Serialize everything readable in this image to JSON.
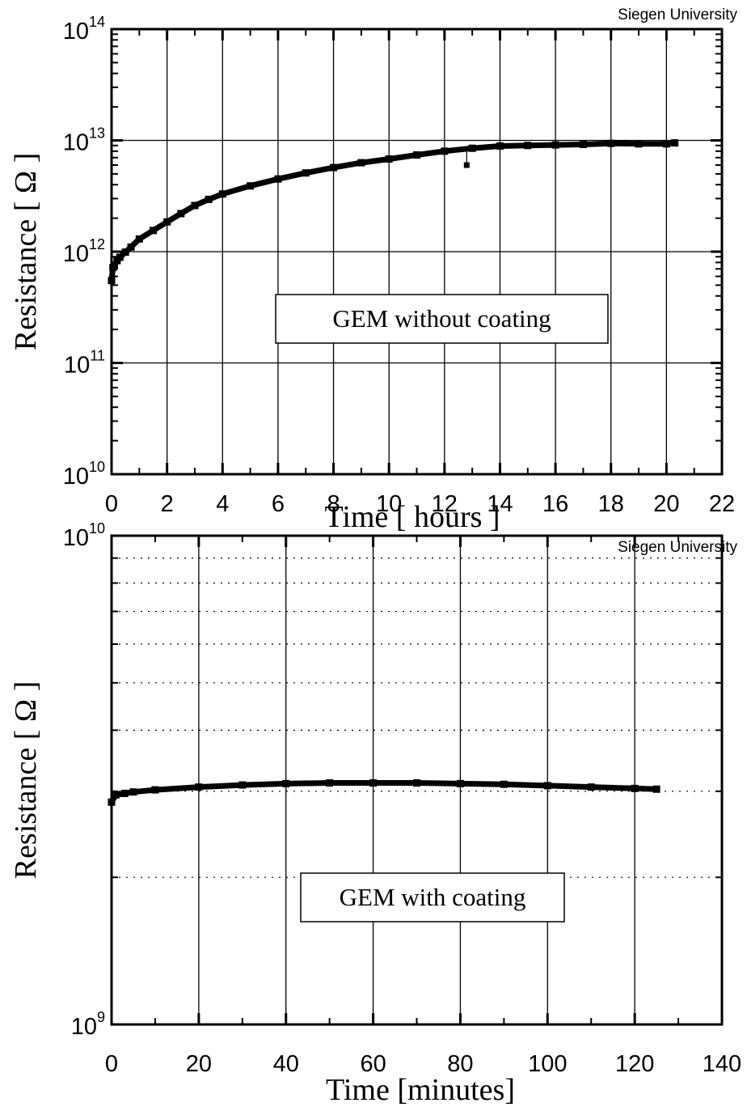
{
  "chart_data": [
    {
      "type": "scatter",
      "credit": "Siegen University",
      "xlabel": "Time [ hours ]",
      "ylabel": "Resistance [ Ω ]",
      "annotation": "GEM without coating",
      "xlim": [
        0,
        22
      ],
      "ylim": [
        10000000000.0,
        100000000000000.0
      ],
      "y_scale": "log",
      "grid": "major, solid",
      "x_ticks": [
        {
          "value": 0,
          "label": "0"
        },
        {
          "value": 2,
          "label": "2"
        },
        {
          "value": 4,
          "label": "4"
        },
        {
          "value": 6,
          "label": "6"
        },
        {
          "value": 8,
          "label": "8"
        },
        {
          "value": 10,
          "label": "10"
        },
        {
          "value": 12,
          "label": "12"
        },
        {
          "value": 14,
          "label": "14"
        },
        {
          "value": 16,
          "label": "16"
        },
        {
          "value": 18,
          "label": "18"
        },
        {
          "value": 20,
          "label": "20"
        },
        {
          "value": 22,
          "label": "22"
        }
      ],
      "y_ticks": [
        {
          "value": 10000000000.0,
          "base": "10",
          "exp": "10"
        },
        {
          "value": 100000000000.0,
          "base": "10",
          "exp": "11"
        },
        {
          "value": 1000000000000.0,
          "base": "10",
          "exp": "12"
        },
        {
          "value": 10000000000000.0,
          "base": "10",
          "exp": "13"
        },
        {
          "value": 100000000000000.0,
          "base": "10",
          "exp": "14"
        }
      ],
      "x": [
        0.0,
        0.05,
        0.1,
        0.2,
        0.3,
        0.5,
        0.7,
        1.0,
        1.5,
        2.0,
        2.5,
        3.0,
        3.5,
        4.0,
        5.0,
        6.0,
        7.0,
        8.0,
        9.0,
        10.0,
        11.0,
        12.0,
        13.0,
        14.0,
        15.0,
        16.0,
        17.0,
        18.0,
        19.0,
        20.0,
        20.3
      ],
      "y": [
        550000000000.0,
        720000000000.0,
        760000000000.0,
        830000000000.0,
        890000000000.0,
        990000000000.0,
        1100000000000.0,
        1300000000000.0,
        1550000000000.0,
        1850000000000.0,
        2200000000000.0,
        2600000000000.0,
        2950000000000.0,
        3300000000000.0,
        3900000000000.0,
        4500000000000.0,
        5100000000000.0,
        5700000000000.0,
        6300000000000.0,
        6800000000000.0,
        7400000000000.0,
        8000000000000.0,
        8500000000000.0,
        8900000000000.0,
        9000000000000.0,
        9100000000000.0,
        9200000000000.0,
        9400000000000.0,
        9300000000000.0,
        9300000000000.0,
        9500000000000.0
      ],
      "outlier": {
        "x": 12.8,
        "y": 6000000000000.0
      }
    },
    {
      "type": "scatter",
      "credit": "Siegen University",
      "xlabel": "Time [minutes]",
      "ylabel": "Resistance [ Ω ]",
      "annotation": "GEM with coating",
      "xlim": [
        0,
        140
      ],
      "ylim": [
        1000000000.0,
        10000000000.0
      ],
      "y_scale": "log",
      "grid": "vertical solid, horizontal dotted at minor decades",
      "x_ticks": [
        {
          "value": 0,
          "label": "0"
        },
        {
          "value": 20,
          "label": "20"
        },
        {
          "value": 40,
          "label": "40"
        },
        {
          "value": 60,
          "label": "60"
        },
        {
          "value": 80,
          "label": "80"
        },
        {
          "value": 100,
          "label": "100"
        },
        {
          "value": 120,
          "label": "120"
        },
        {
          "value": 140,
          "label": "140"
        }
      ],
      "y_ticks": [
        {
          "value": 1000000000.0,
          "base": "10",
          "exp": "9"
        },
        {
          "value": 10000000000.0,
          "base": "10",
          "exp": "10"
        }
      ],
      "minor_y": [
        2000000000.0,
        3000000000.0,
        4000000000.0,
        5000000000.0,
        6000000000.0,
        7000000000.0,
        8000000000.0,
        9000000000.0
      ],
      "x": [
        0,
        1,
        3,
        5,
        10,
        20,
        30,
        40,
        50,
        60,
        70,
        80,
        90,
        100,
        110,
        120,
        125
      ],
      "y": [
        2850000000.0,
        2950000000.0,
        2970000000.0,
        2990000000.0,
        3020000000.0,
        3060000000.0,
        3090000000.0,
        3110000000.0,
        3120000000.0,
        3120000000.0,
        3120000000.0,
        3110000000.0,
        3100000000.0,
        3080000000.0,
        3060000000.0,
        3040000000.0,
        3030000000.0
      ]
    }
  ]
}
